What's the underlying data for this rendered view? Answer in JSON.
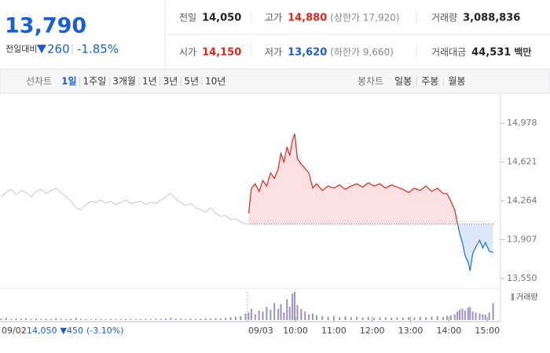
{
  "quote": {
    "price": "13,790",
    "change_label": "전일대비",
    "change": "260",
    "change_pct": "-1.85%"
  },
  "stats": [
    {
      "label": "전일",
      "value": "14,050",
      "color": "#222222"
    },
    {
      "label": "고가",
      "value": "14,880",
      "note": "(상한가 17,920)",
      "color": "#e0261b"
    },
    {
      "label": "거래량",
      "value": "3,088,836",
      "color": "#222222"
    },
    {
      "label": "시가",
      "value": "14,150",
      "color": "#e0261b"
    },
    {
      "label": "저가",
      "value": "13,620",
      "note": "(하한가 9,660)",
      "color": "#1a5fcc"
    },
    {
      "label": "거래대금",
      "value": "44,531",
      "unit": "백만",
      "color": "#222222"
    }
  ],
  "tabs": {
    "line_label": "선차트",
    "line": [
      "1일",
      "1주일",
      "3개월",
      "1년",
      "3년",
      "5년",
      "10년"
    ],
    "active_index": 0,
    "candle_label": "봉차트",
    "candle": [
      "일봉",
      "주봉",
      "월봉"
    ]
  },
  "chart_data": {
    "type": "line",
    "xlim": [
      8.75,
      15.2
    ],
    "xticks": [
      {
        "value": 10,
        "label": "10:00"
      },
      {
        "value": 11,
        "label": "11:00"
      },
      {
        "value": 12,
        "label": "12:00"
      },
      {
        "value": 13,
        "label": "13:00"
      },
      {
        "value": 14,
        "label": "14:00"
      },
      {
        "value": 15,
        "label": "15:00"
      }
    ],
    "ylim": [
      13456,
      15223
    ],
    "yticks": [
      {
        "value": 13550,
        "label": "13,550"
      },
      {
        "value": 13907,
        "label": "13,907"
      },
      {
        "value": 14264,
        "label": "14,264"
      },
      {
        "value": 14621,
        "label": "14,621"
      },
      {
        "value": 14978,
        "label": "14,978"
      }
    ],
    "reference": 14050,
    "volume_label": "거래량",
    "volume_ylim": [
      0,
      150000
    ],
    "prev_day_info": {
      "close": "14,050",
      "change": "▼450",
      "change_pct": "(-3.10%)"
    },
    "series": [
      {
        "name": "09/02",
        "color": "#c8c8c8",
        "x": [
          8.78,
          8.91,
          9.04,
          9.17,
          9.3,
          9.43,
          9.56,
          9.69,
          9.82,
          9.95,
          10.08,
          10.21,
          10.34,
          10.47,
          10.6,
          10.73,
          10.86,
          10.99,
          11.12,
          11.25,
          11.38,
          11.51,
          11.64,
          11.77,
          11.9,
          12.03,
          12.16,
          12.29,
          12.42,
          12.55,
          12.68,
          12.81,
          12.94,
          13.07,
          13.2,
          13.33,
          13.46,
          13.59,
          13.72,
          13.85,
          13.98,
          14.11,
          14.24,
          14.37,
          14.5,
          14.63,
          14.76,
          14.89,
          15.02,
          15.15
        ],
        "values": [
          14300,
          14340,
          14370,
          14320,
          14360,
          14340,
          14300,
          14350,
          14370,
          14330,
          14360,
          14380,
          14340,
          14300,
          14260,
          14200,
          14180,
          14230,
          14260,
          14250,
          14270,
          14240,
          14260,
          14230,
          14250,
          14270,
          14240,
          14250,
          14260,
          14230,
          14250,
          14240,
          14270,
          14300,
          14330,
          14280,
          14250,
          14220,
          14240,
          14200,
          14180,
          14160,
          14200,
          14150,
          14120,
          14130,
          14090,
          14100,
          14070,
          14050
        ],
        "volume": [
          8000,
          12000,
          6000,
          9000,
          7000,
          10000,
          5000,
          8000,
          6000,
          7000,
          5000,
          9000,
          6000,
          5000,
          7000,
          11000,
          6000,
          5000,
          4000,
          6000,
          5000,
          4000,
          6000,
          5000,
          4000,
          5000,
          6000,
          4000,
          5000,
          6000,
          5000,
          7000,
          6000,
          8000,
          12000,
          7000,
          6000,
          5000,
          8000,
          6000,
          7000,
          9000,
          8000,
          10000,
          9000,
          12000,
          15000,
          18000,
          20000,
          35000
        ]
      },
      {
        "name": "09/03",
        "up_color": "#e0261b",
        "down_color": "#1a6fd6",
        "up_fill": "#fbe1e1",
        "down_fill": "#dce8f8",
        "x": [
          8.78,
          8.85,
          8.95,
          9.05,
          9.15,
          9.25,
          9.35,
          9.45,
          9.55,
          9.62,
          9.7,
          9.78,
          9.85,
          9.92,
          9.98,
          10.05,
          10.15,
          10.25,
          10.35,
          10.45,
          10.55,
          10.7,
          10.85,
          11.0,
          11.15,
          11.3,
          11.45,
          11.6,
          11.75,
          11.9,
          12.05,
          12.2,
          12.35,
          12.5,
          12.65,
          12.8,
          12.95,
          13.1,
          13.25,
          13.4,
          13.55,
          13.7,
          13.85,
          13.95,
          14.05,
          14.15,
          14.22,
          14.28,
          14.35,
          14.42,
          14.5,
          14.55,
          14.62,
          14.7,
          14.8,
          14.88,
          14.95,
          15.05,
          15.15
        ],
        "values": [
          14150,
          14380,
          14420,
          14350,
          14450,
          14400,
          14520,
          14470,
          14560,
          14700,
          14620,
          14760,
          14680,
          14820,
          14880,
          14650,
          14600,
          14560,
          14520,
          14380,
          14420,
          14360,
          14400,
          14380,
          14410,
          14370,
          14400,
          14420,
          14390,
          14430,
          14400,
          14420,
          14380,
          14410,
          14390,
          14370,
          14340,
          14380,
          14360,
          14400,
          14350,
          14380,
          14330,
          14330,
          14260,
          14180,
          14060,
          13960,
          13880,
          13760,
          13700,
          13620,
          13780,
          13840,
          13900,
          13830,
          13880,
          13800,
          13790
        ],
        "volume": [
          40000,
          60000,
          30000,
          50000,
          45000,
          70000,
          55000,
          90000,
          60000,
          85000,
          40000,
          110000,
          70000,
          140000,
          150000,
          80000,
          60000,
          45000,
          30000,
          35000,
          25000,
          20000,
          18000,
          22000,
          15000,
          20000,
          15000,
          18000,
          14000,
          16000,
          12000,
          15000,
          14000,
          12000,
          15000,
          13000,
          16000,
          14000,
          17000,
          15000,
          18000,
          20000,
          16000,
          22000,
          25000,
          30000,
          45000,
          55000,
          60000,
          50000,
          65000,
          70000,
          45000,
          40000,
          35000,
          30000,
          28000,
          40000,
          90000
        ]
      }
    ],
    "volume_color": "#9d8fc8"
  }
}
